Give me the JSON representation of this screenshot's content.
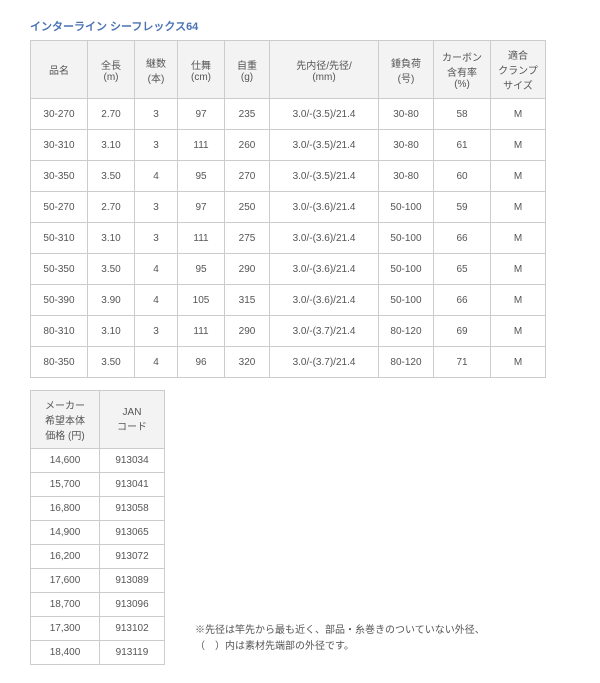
{
  "title": "インターライン シーフレックス64",
  "main": {
    "headers": {
      "name": "品名",
      "length": "全長\n(m)",
      "sections": "継数\n(本)",
      "closed": "仕舞\n(cm)",
      "weight": "自重\n(g)",
      "dia": "先内径/先径/\n(mm)",
      "load": "錘負荷\n(号)",
      "carbon": "カーボン\n含有率\n(%)",
      "clamp": "適合\nクランプ\nサイズ"
    },
    "rows": [
      [
        "30-270",
        "2.70",
        "3",
        "97",
        "235",
        "3.0/-(3.5)/21.4",
        "30-80",
        "58",
        "M"
      ],
      [
        "30-310",
        "3.10",
        "3",
        "111",
        "260",
        "3.0/-(3.5)/21.4",
        "30-80",
        "61",
        "M"
      ],
      [
        "30-350",
        "3.50",
        "4",
        "95",
        "270",
        "3.0/-(3.5)/21.4",
        "30-80",
        "60",
        "M"
      ],
      [
        "50-270",
        "2.70",
        "3",
        "97",
        "250",
        "3.0/-(3.6)/21.4",
        "50-100",
        "59",
        "M"
      ],
      [
        "50-310",
        "3.10",
        "3",
        "111",
        "275",
        "3.0/-(3.6)/21.4",
        "50-100",
        "66",
        "M"
      ],
      [
        "50-350",
        "3.50",
        "4",
        "95",
        "290",
        "3.0/-(3.6)/21.4",
        "50-100",
        "65",
        "M"
      ],
      [
        "50-390",
        "3.90",
        "4",
        "105",
        "315",
        "3.0/-(3.6)/21.4",
        "50-100",
        "66",
        "M"
      ],
      [
        "80-310",
        "3.10",
        "3",
        "111",
        "290",
        "3.0/-(3.7)/21.4",
        "80-120",
        "69",
        "M"
      ],
      [
        "80-350",
        "3.50",
        "4",
        "96",
        "320",
        "3.0/-(3.7)/21.4",
        "80-120",
        "71",
        "M"
      ]
    ]
  },
  "sub": {
    "headers": {
      "price": "メーカー\n希望本体\n価格 (円)",
      "jan": "JAN\nコード"
    },
    "rows": [
      [
        "14,600",
        "913034"
      ],
      [
        "15,700",
        "913041"
      ],
      [
        "16,800",
        "913058"
      ],
      [
        "14,900",
        "913065"
      ],
      [
        "16,200",
        "913072"
      ],
      [
        "17,600",
        "913089"
      ],
      [
        "18,700",
        "913096"
      ],
      [
        "17,300",
        "913102"
      ],
      [
        "18,400",
        "913119"
      ]
    ]
  },
  "note": {
    "line1": "※先径は竿先から最も近く、部品・糸巻きのついていない外径、",
    "line2": "（　）内は素材先端部の外径です。"
  }
}
